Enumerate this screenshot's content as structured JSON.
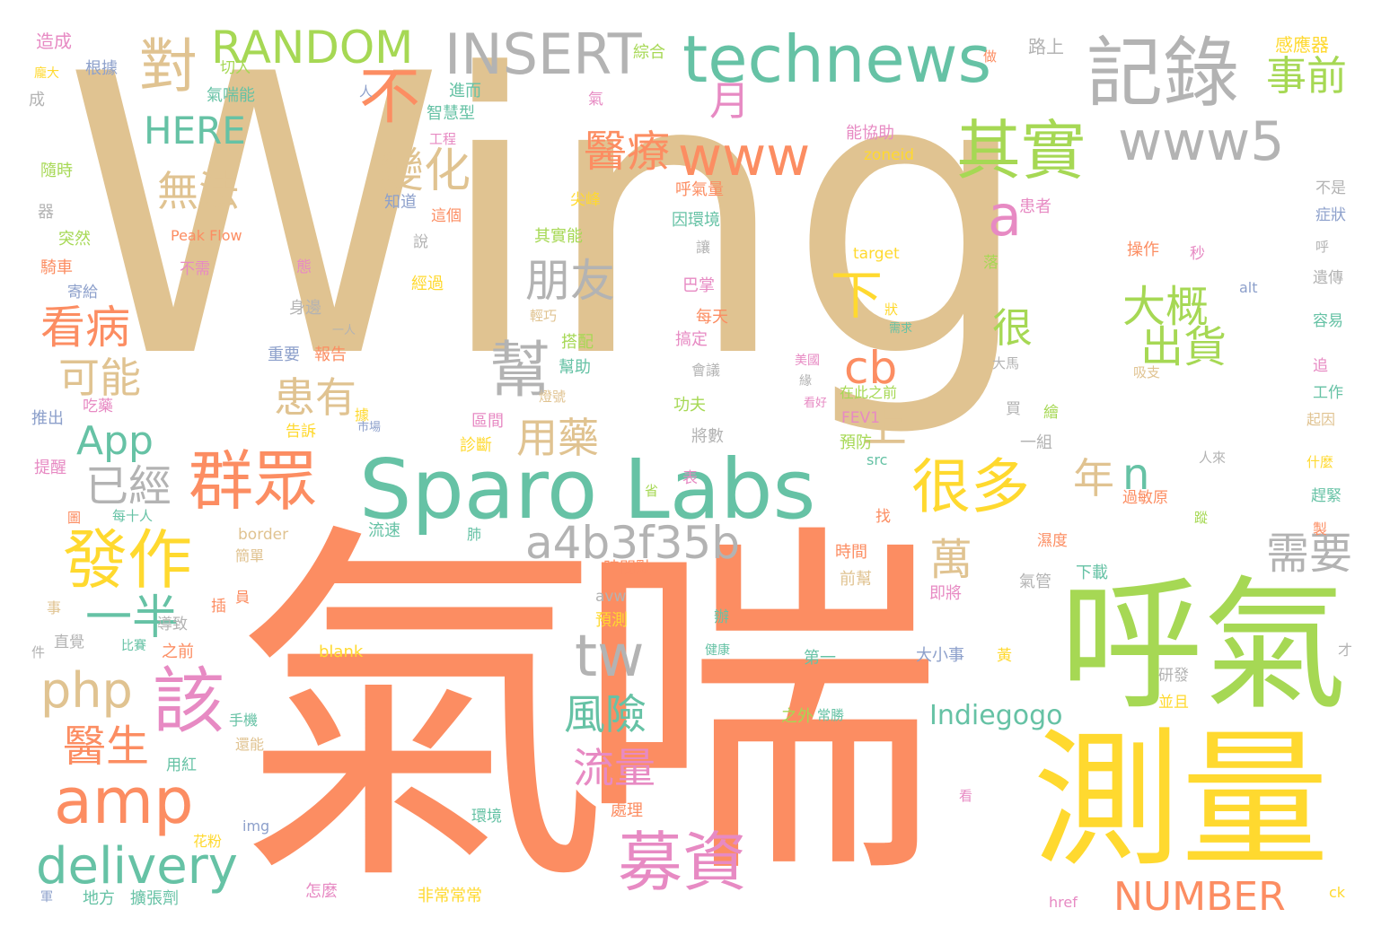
{
  "colors": {
    "tan": "#e0c391",
    "orange": "#fc8d62",
    "green": "#a6d854",
    "teal": "#66c2a5",
    "yellow": "#ffd92f",
    "gray": "#b3b3b3",
    "pink": "#e78ac3",
    "blue": "#8da0cb"
  },
  "words": [
    {
      "text": "Wing",
      "color": "tan"
    },
    {
      "text": "氣",
      "color": "orange"
    },
    {
      "text": "喘",
      "color": "orange"
    },
    {
      "text": "呼氣",
      "color": "green"
    },
    {
      "text": "測量",
      "color": "yellow"
    },
    {
      "text": "Sparo Labs",
      "color": "teal"
    },
    {
      "text": "technews",
      "color": "teal"
    },
    {
      "text": "記錄",
      "color": "gray"
    },
    {
      "text": "INSERT",
      "color": "gray"
    },
    {
      "text": "RANDOM",
      "color": "green"
    },
    {
      "text": "對",
      "color": "tan"
    },
    {
      "text": "不",
      "color": "orange"
    },
    {
      "text": "其實",
      "color": "green"
    },
    {
      "text": "www5",
      "color": "gray"
    },
    {
      "text": "www",
      "color": "orange"
    },
    {
      "text": "事前",
      "color": "green"
    },
    {
      "text": "HERE",
      "color": "teal"
    },
    {
      "text": "月",
      "color": "pink"
    },
    {
      "text": "醫療",
      "color": "orange"
    },
    {
      "text": "變化",
      "color": "tan"
    },
    {
      "text": "無法",
      "color": "tan"
    },
    {
      "text": "a",
      "color": "pink"
    },
    {
      "text": "下",
      "color": "yellow"
    },
    {
      "text": "朋友",
      "color": "gray"
    },
    {
      "text": "大概",
      "color": "green"
    },
    {
      "text": "出貨",
      "color": "green"
    },
    {
      "text": "很",
      "color": "green"
    },
    {
      "text": "看病",
      "color": "orange"
    },
    {
      "text": "幫",
      "color": "gray"
    },
    {
      "text": "cb",
      "color": "orange"
    },
    {
      "text": "可能",
      "color": "tan"
    },
    {
      "text": "患有",
      "color": "tan"
    },
    {
      "text": "上",
      "color": "tan"
    },
    {
      "text": "App",
      "color": "teal"
    },
    {
      "text": "用藥",
      "color": "tan"
    },
    {
      "text": "群眾",
      "color": "orange"
    },
    {
      "text": "已經",
      "color": "gray"
    },
    {
      "text": "很多",
      "color": "yellow"
    },
    {
      "text": "年",
      "color": "tan"
    },
    {
      "text": "n",
      "color": "teal"
    },
    {
      "text": "發作",
      "color": "yellow"
    },
    {
      "text": "a4b3f35b",
      "color": "gray"
    },
    {
      "text": "萬",
      "color": "tan"
    },
    {
      "text": "需要",
      "color": "gray"
    },
    {
      "text": "一半",
      "color": "teal"
    },
    {
      "text": "php",
      "color": "tan"
    },
    {
      "text": "該",
      "color": "pink"
    },
    {
      "text": "tw",
      "color": "gray"
    },
    {
      "text": "amp",
      "color": "orange"
    },
    {
      "text": "醫生",
      "color": "orange"
    },
    {
      "text": "風險",
      "color": "teal"
    },
    {
      "text": "流量",
      "color": "pink"
    },
    {
      "text": "Indiegogo",
      "color": "teal"
    },
    {
      "text": "delivery",
      "color": "teal"
    },
    {
      "text": "募資",
      "color": "pink"
    },
    {
      "text": "NUMBER",
      "color": "orange"
    },
    {
      "text": "造成",
      "color": "pink"
    },
    {
      "text": "根據",
      "color": "blue"
    },
    {
      "text": "切入",
      "color": "green"
    },
    {
      "text": "氣喘能",
      "color": "teal"
    },
    {
      "text": "綜合",
      "color": "green"
    },
    {
      "text": "路上",
      "color": "gray"
    },
    {
      "text": "感應器",
      "color": "yellow"
    },
    {
      "text": "進而",
      "color": "teal"
    },
    {
      "text": "智慧型",
      "color": "teal"
    },
    {
      "text": "能協助",
      "color": "pink"
    },
    {
      "text": "zoneid",
      "color": "yellow"
    },
    {
      "text": "呼氣量",
      "color": "orange"
    },
    {
      "text": "患者",
      "color": "pink"
    },
    {
      "text": "因環境",
      "color": "teal"
    },
    {
      "text": "其實能",
      "color": "green"
    },
    {
      "text": "操作",
      "color": "orange"
    },
    {
      "text": "target",
      "color": "yellow"
    },
    {
      "text": "alt",
      "color": "blue"
    },
    {
      "text": "Peak Flow",
      "color": "orange"
    },
    {
      "text": "不需",
      "color": "pink"
    },
    {
      "text": "經過",
      "color": "yellow"
    },
    {
      "text": "巴掌",
      "color": "pink"
    },
    {
      "text": "每天",
      "color": "orange"
    },
    {
      "text": "搞定",
      "color": "pink"
    },
    {
      "text": "身邊",
      "color": "gray"
    },
    {
      "text": "重要",
      "color": "blue"
    },
    {
      "text": "報告",
      "color": "orange"
    },
    {
      "text": "搭配",
      "color": "green"
    },
    {
      "text": "幫助",
      "color": "teal"
    },
    {
      "text": "在此之前",
      "color": "green"
    },
    {
      "text": "FEV1",
      "color": "pink"
    },
    {
      "text": "預防",
      "color": "green"
    },
    {
      "text": "src",
      "color": "teal"
    },
    {
      "text": "一組",
      "color": "gray"
    },
    {
      "text": "功夫",
      "color": "green"
    },
    {
      "text": "將數",
      "color": "gray"
    },
    {
      "text": "診斷",
      "color": "yellow"
    },
    {
      "text": "區間",
      "color": "pink"
    },
    {
      "text": "border",
      "color": "tan"
    },
    {
      "text": "流速",
      "color": "teal"
    },
    {
      "text": "時間",
      "color": "orange"
    },
    {
      "text": "前幫",
      "color": "tan"
    },
    {
      "text": "即將",
      "color": "pink"
    },
    {
      "text": "時間點",
      "color": "orange"
    },
    {
      "text": "下載",
      "color": "teal"
    },
    {
      "text": "氣管",
      "color": "gray"
    },
    {
      "text": "avw",
      "color": "gray"
    },
    {
      "text": "預測",
      "color": "yellow"
    },
    {
      "text": "blank",
      "color": "yellow"
    },
    {
      "text": "之前",
      "color": "orange"
    },
    {
      "text": "第一",
      "color": "teal"
    },
    {
      "text": "大小事",
      "color": "blue"
    },
    {
      "text": "研發",
      "color": "gray"
    },
    {
      "text": "並且",
      "color": "yellow"
    },
    {
      "text": "之外",
      "color": "green"
    },
    {
      "text": "常勝",
      "color": "teal"
    },
    {
      "text": "手機",
      "color": "teal"
    },
    {
      "text": "還能",
      "color": "tan"
    },
    {
      "text": "用紅",
      "color": "teal"
    },
    {
      "text": "處理",
      "color": "orange"
    },
    {
      "text": "環境",
      "color": "teal"
    },
    {
      "text": "花粉",
      "color": "yellow"
    },
    {
      "text": "img",
      "color": "blue"
    },
    {
      "text": "地方",
      "color": "teal"
    },
    {
      "text": "擴張劑",
      "color": "teal"
    },
    {
      "text": "怎麼",
      "color": "pink"
    },
    {
      "text": "非常常常",
      "color": "yellow"
    },
    {
      "text": "href",
      "color": "pink"
    },
    {
      "text": "ck",
      "color": "yellow"
    },
    {
      "text": "隨時",
      "color": "green"
    },
    {
      "text": "突然",
      "color": "green"
    },
    {
      "text": "騎車",
      "color": "orange"
    },
    {
      "text": "寄給",
      "color": "blue"
    },
    {
      "text": "推出",
      "color": "blue"
    },
    {
      "text": "吃藥",
      "color": "pink"
    },
    {
      "text": "告訴",
      "color": "yellow"
    },
    {
      "text": "提醒",
      "color": "pink"
    },
    {
      "text": "每十人",
      "color": "teal"
    },
    {
      "text": "直覺",
      "color": "gray"
    },
    {
      "text": "導致",
      "color": "gray"
    },
    {
      "text": "不是",
      "color": "gray"
    },
    {
      "text": "症狀",
      "color": "blue"
    },
    {
      "text": "遺傳",
      "color": "gray"
    },
    {
      "text": "容易",
      "color": "teal"
    },
    {
      "text": "工作",
      "color": "teal"
    },
    {
      "text": "起因",
      "color": "tan"
    },
    {
      "text": "什麼",
      "color": "yellow"
    },
    {
      "text": "趕緊",
      "color": "teal"
    },
    {
      "text": "過敏原",
      "color": "orange"
    },
    {
      "text": "濕度",
      "color": "orange"
    },
    {
      "text": "尖峰",
      "color": "yellow"
    },
    {
      "text": "知道",
      "color": "blue"
    },
    {
      "text": "這個",
      "color": "orange"
    },
    {
      "text": "工程",
      "color": "pink"
    },
    {
      "text": "人",
      "color": "blue"
    },
    {
      "text": "做",
      "color": "orange"
    },
    {
      "text": "成",
      "color": "gray"
    },
    {
      "text": "器",
      "color": "gray"
    },
    {
      "text": "說",
      "color": "gray"
    },
    {
      "text": "讓",
      "color": "gray"
    },
    {
      "text": "秒",
      "color": "pink"
    },
    {
      "text": "呼",
      "color": "gray"
    },
    {
      "text": "落",
      "color": "green"
    },
    {
      "text": "狀",
      "color": "yellow"
    },
    {
      "text": "吸支",
      "color": "tan"
    },
    {
      "text": "大馬",
      "color": "gray"
    },
    {
      "text": "買",
      "color": "gray"
    },
    {
      "text": "繪",
      "color": "green"
    },
    {
      "text": "美國",
      "color": "pink"
    },
    {
      "text": "看好",
      "color": "pink"
    },
    {
      "text": "表",
      "color": "pink"
    },
    {
      "text": "省",
      "color": "green"
    },
    {
      "text": "找",
      "color": "orange"
    },
    {
      "text": "肺",
      "color": "teal"
    },
    {
      "text": "圖",
      "color": "orange"
    },
    {
      "text": "事",
      "color": "tan"
    },
    {
      "text": "件",
      "color": "gray"
    },
    {
      "text": "插",
      "color": "orange"
    },
    {
      "text": "員",
      "color": "orange"
    },
    {
      "text": "比賽",
      "color": "teal"
    },
    {
      "text": "健康",
      "color": "teal"
    },
    {
      "text": "辦",
      "color": "teal"
    },
    {
      "text": "黃",
      "color": "yellow"
    },
    {
      "text": "看",
      "color": "pink"
    },
    {
      "text": "才",
      "color": "gray"
    },
    {
      "text": "軍",
      "color": "blue"
    },
    {
      "text": "製",
      "color": "orange"
    },
    {
      "text": "蹤",
      "color": "green"
    },
    {
      "text": "追",
      "color": "pink"
    },
    {
      "text": "態",
      "color": "pink"
    },
    {
      "text": "燈號",
      "color": "tan"
    },
    {
      "text": "需求",
      "color": "teal"
    },
    {
      "text": "一人",
      "color": "gray"
    },
    {
      "text": "輕巧",
      "color": "tan"
    },
    {
      "text": "會議",
      "color": "gray"
    },
    {
      "text": "市場",
      "color": "blue"
    },
    {
      "text": "據",
      "color": "yellow"
    },
    {
      "text": "緣",
      "color": "gray"
    },
    {
      "text": "人來",
      "color": "gray"
    },
    {
      "text": "簡單",
      "color": "tan"
    },
    {
      "text": "龐大",
      "color": "yellow"
    },
    {
      "text": "氣",
      "color": "pink"
    }
  ]
}
